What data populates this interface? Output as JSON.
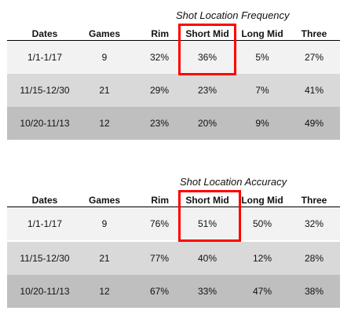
{
  "tables": [
    {
      "title": "Shot Location Frequency",
      "headers": {
        "dates": "Dates",
        "games": "Games",
        "rim": "Rim",
        "short_mid": "Short Mid",
        "long_mid": "Long Mid",
        "three": "Three"
      },
      "rows": [
        {
          "dates": "1/1-1/17",
          "games": "9",
          "rim": "32%",
          "short_mid": "36%",
          "long_mid": "5%",
          "three": "27%"
        },
        {
          "dates": "11/15-12/30",
          "games": "21",
          "rim": "29%",
          "short_mid": "23%",
          "long_mid": "7%",
          "three": "41%"
        },
        {
          "dates": "10/20-11/13",
          "games": "12",
          "rim": "23%",
          "short_mid": "20%",
          "long_mid": "9%",
          "three": "49%"
        }
      ]
    },
    {
      "title": "Shot Location Accuracy",
      "headers": {
        "dates": "Dates",
        "games": "Games",
        "rim": "Rim",
        "short_mid": "Short Mid",
        "long_mid": "Long Mid",
        "three": "Three"
      },
      "rows": [
        {
          "dates": "1/1-1/17",
          "games": "9",
          "rim": "76%",
          "short_mid": "51%",
          "long_mid": "50%",
          "three": "32%"
        },
        {
          "dates": "11/15-12/30",
          "games": "21",
          "rim": "77%",
          "short_mid": "40%",
          "long_mid": "12%",
          "three": "28%"
        },
        {
          "dates": "10/20-11/13",
          "games": "12",
          "rim": "67%",
          "short_mid": "33%",
          "long_mid": "47%",
          "three": "38%"
        }
      ]
    }
  ],
  "highlight_color": "#ff0000"
}
